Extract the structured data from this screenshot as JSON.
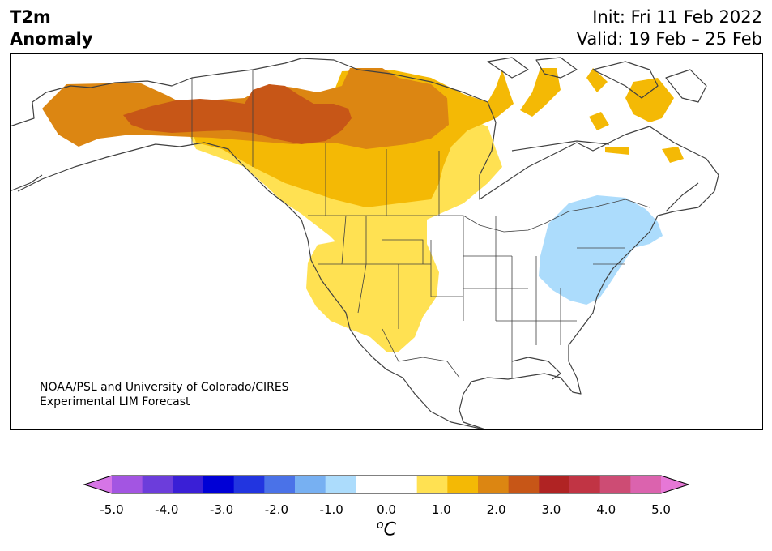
{
  "header": {
    "title_line1": "T2m",
    "title_line2": "Anomaly",
    "init": "Init: Fri 11 Feb 2022",
    "valid": "Valid: 19 Feb – 25 Feb"
  },
  "credit": {
    "line1": "NOAA/PSL and University of Colorado/CIRES",
    "line2": "Experimental LIM Forecast"
  },
  "map": {
    "region": "North America",
    "anomalies": [
      {
        "area": "Alaska / Yukon / Northwest Territories",
        "level": "+1.0 to +2.5"
      },
      {
        "area": "Western Canada / Prairies",
        "level": "+0.5 to +2.0"
      },
      {
        "area": "U.S. Interior West / Rockies",
        "level": "+0.5 to +1.0"
      },
      {
        "area": "Arctic Islands / Greenland coast",
        "level": "+0.5 to +1.5"
      },
      {
        "area": "Great Lakes / Ohio Valley / Northeast U.S.",
        "level": "-1.0 to -0.5"
      }
    ]
  },
  "colorbar": {
    "colors": [
      "#d675e6",
      "#a355e2",
      "#6c3ddb",
      "#3a1fd6",
      "#0000d6",
      "#2235e0",
      "#4a72e8",
      "#77b0f2",
      "#acdcfc",
      "#ffffff",
      "#ffffff",
      "#ffe152",
      "#f4b905",
      "#dc8612",
      "#c75617",
      "#b02323",
      "#c13444",
      "#cd4c74",
      "#db63ae",
      "#e677d6"
    ],
    "ticks": [
      "-5.0",
      "-4.0",
      "-3.0",
      "-2.0",
      "-1.0",
      "0.0",
      "1.0",
      "2.0",
      "3.0",
      "4.0",
      "5.0"
    ],
    "unit_sup": "o",
    "unit": "C",
    "extend": "both"
  }
}
